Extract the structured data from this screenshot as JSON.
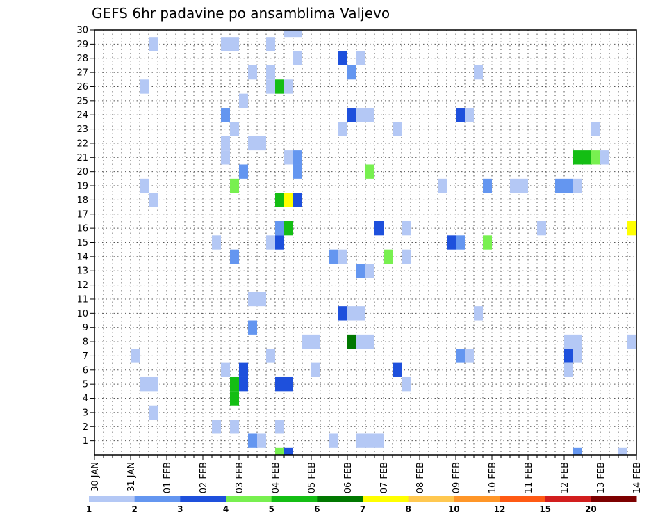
{
  "chart_data": {
    "type": "heatmap",
    "title": "GEFS 6hr padavine po ansamblima Valjevo",
    "x_tick_labels": [
      "30 JAN",
      "31 JAN",
      "01 FEB",
      "02 FEB",
      "03 FEB",
      "04 FEB",
      "05 FEB",
      "06 FEB",
      "07 FEB",
      "08 FEB",
      "09 FEB",
      "10 FEB",
      "11 FEB",
      "12 FEB",
      "13 FEB",
      "14 FEB"
    ],
    "y_tick_labels": [
      "1",
      "2",
      "3",
      "4",
      "5",
      "6",
      "7",
      "8",
      "9",
      "10",
      "11",
      "12",
      "13",
      "14",
      "15",
      "16",
      "17",
      "18",
      "19",
      "20",
      "21",
      "22",
      "23",
      "24",
      "25",
      "26",
      "27",
      "28",
      "29",
      "30"
    ],
    "y_range": [
      0,
      30
    ],
    "x_range_days": [
      0,
      15
    ],
    "steps_per_day": 4,
    "grid": true,
    "colorbar_levels": [
      "1",
      "2",
      "3",
      "4",
      "5",
      "6",
      "7",
      "8",
      "10",
      "12",
      "15",
      "20"
    ],
    "colorbar_colors": [
      "#b4c8f5",
      "#6496f0",
      "#1e50dc",
      "#78f050",
      "#14be14",
      "#007800",
      "#ffff00",
      "#ffc850",
      "#ff9628",
      "#ff5a14",
      "#d21e1e",
      "#7d0000"
    ],
    "cells": [
      {
        "member": 30,
        "step": 21,
        "level": 1
      },
      {
        "member": 30,
        "step": 22,
        "level": 1
      },
      {
        "member": 29,
        "step": 6,
        "level": 1
      },
      {
        "member": 29,
        "step": 14,
        "level": 1
      },
      {
        "member": 29,
        "step": 15,
        "level": 1
      },
      {
        "member": 29,
        "step": 19,
        "level": 1
      },
      {
        "member": 28,
        "step": 22,
        "level": 1
      },
      {
        "member": 28,
        "step": 27,
        "level": 3
      },
      {
        "member": 28,
        "step": 29,
        "level": 1
      },
      {
        "member": 27,
        "step": 17,
        "level": 1
      },
      {
        "member": 27,
        "step": 19,
        "level": 1
      },
      {
        "member": 27,
        "step": 28,
        "level": 2
      },
      {
        "member": 27,
        "step": 42,
        "level": 1
      },
      {
        "member": 26,
        "step": 5,
        "level": 1
      },
      {
        "member": 26,
        "step": 19,
        "level": 1
      },
      {
        "member": 26,
        "step": 20,
        "level": 5
      },
      {
        "member": 26,
        "step": 21,
        "level": 1
      },
      {
        "member": 25,
        "step": 16,
        "level": 1
      },
      {
        "member": 24,
        "step": 14,
        "level": 2
      },
      {
        "member": 24,
        "step": 28,
        "level": 3
      },
      {
        "member": 24,
        "step": 29,
        "level": 1
      },
      {
        "member": 24,
        "step": 30,
        "level": 1
      },
      {
        "member": 24,
        "step": 40,
        "level": 3
      },
      {
        "member": 24,
        "step": 41,
        "level": 1
      },
      {
        "member": 23,
        "step": 15,
        "level": 1
      },
      {
        "member": 23,
        "step": 27,
        "level": 1
      },
      {
        "member": 23,
        "step": 33,
        "level": 1
      },
      {
        "member": 23,
        "step": 55,
        "level": 1
      },
      {
        "member": 22,
        "step": 14,
        "level": 1
      },
      {
        "member": 22,
        "step": 17,
        "level": 1
      },
      {
        "member": 22,
        "step": 18,
        "level": 1
      },
      {
        "member": 21,
        "step": 14,
        "level": 1
      },
      {
        "member": 21,
        "step": 21,
        "level": 1
      },
      {
        "member": 21,
        "step": 22,
        "level": 2
      },
      {
        "member": 21,
        "step": 53,
        "level": 5
      },
      {
        "member": 21,
        "step": 54,
        "level": 5
      },
      {
        "member": 21,
        "step": 55,
        "level": 4
      },
      {
        "member": 21,
        "step": 56,
        "level": 1
      },
      {
        "member": 20,
        "step": 16,
        "level": 2
      },
      {
        "member": 20,
        "step": 22,
        "level": 2
      },
      {
        "member": 20,
        "step": 30,
        "level": 4
      },
      {
        "member": 19,
        "step": 5,
        "level": 1
      },
      {
        "member": 19,
        "step": 15,
        "level": 4
      },
      {
        "member": 19,
        "step": 38,
        "level": 1
      },
      {
        "member": 19,
        "step": 43,
        "level": 2
      },
      {
        "member": 19,
        "step": 46,
        "level": 1
      },
      {
        "member": 19,
        "step": 47,
        "level": 1
      },
      {
        "member": 19,
        "step": 51,
        "level": 2
      },
      {
        "member": 19,
        "step": 52,
        "level": 2
      },
      {
        "member": 19,
        "step": 53,
        "level": 1
      },
      {
        "member": 18,
        "step": 6,
        "level": 1
      },
      {
        "member": 18,
        "step": 20,
        "level": 5
      },
      {
        "member": 18,
        "step": 21,
        "level": 7
      },
      {
        "member": 18,
        "step": 22,
        "level": 3
      },
      {
        "member": 16,
        "step": 20,
        "level": 2
      },
      {
        "member": 16,
        "step": 21,
        "level": 5
      },
      {
        "member": 16,
        "step": 31,
        "level": 3
      },
      {
        "member": 16,
        "step": 34,
        "level": 1
      },
      {
        "member": 16,
        "step": 49,
        "level": 1
      },
      {
        "member": 16,
        "step": 59,
        "level": 7
      },
      {
        "member": 15,
        "step": 13,
        "level": 1
      },
      {
        "member": 15,
        "step": 19,
        "level": 1
      },
      {
        "member": 15,
        "step": 20,
        "level": 3
      },
      {
        "member": 15,
        "step": 39,
        "level": 3
      },
      {
        "member": 15,
        "step": 40,
        "level": 2
      },
      {
        "member": 15,
        "step": 43,
        "level": 4
      },
      {
        "member": 14,
        "step": 15,
        "level": 2
      },
      {
        "member": 14,
        "step": 26,
        "level": 2
      },
      {
        "member": 14,
        "step": 27,
        "level": 1
      },
      {
        "member": 14,
        "step": 32,
        "level": 4
      },
      {
        "member": 14,
        "step": 34,
        "level": 1
      },
      {
        "member": 13,
        "step": 29,
        "level": 2
      },
      {
        "member": 13,
        "step": 30,
        "level": 1
      },
      {
        "member": 11,
        "step": 17,
        "level": 1
      },
      {
        "member": 11,
        "step": 18,
        "level": 1
      },
      {
        "member": 10,
        "step": 27,
        "level": 3
      },
      {
        "member": 10,
        "step": 28,
        "level": 1
      },
      {
        "member": 10,
        "step": 29,
        "level": 1
      },
      {
        "member": 10,
        "step": 42,
        "level": 1
      },
      {
        "member": 9,
        "step": 17,
        "level": 2
      },
      {
        "member": 8,
        "step": 23,
        "level": 1
      },
      {
        "member": 8,
        "step": 24,
        "level": 1
      },
      {
        "member": 8,
        "step": 28,
        "level": 6
      },
      {
        "member": 8,
        "step": 29,
        "level": 1
      },
      {
        "member": 8,
        "step": 30,
        "level": 1
      },
      {
        "member": 8,
        "step": 52,
        "level": 1
      },
      {
        "member": 8,
        "step": 53,
        "level": 1
      },
      {
        "member": 8,
        "step": 59,
        "level": 1
      },
      {
        "member": 7,
        "step": 4,
        "level": 1
      },
      {
        "member": 7,
        "step": 19,
        "level": 1
      },
      {
        "member": 7,
        "step": 40,
        "level": 2
      },
      {
        "member": 7,
        "step": 41,
        "level": 1
      },
      {
        "member": 7,
        "step": 52,
        "level": 3
      },
      {
        "member": 7,
        "step": 53,
        "level": 1
      },
      {
        "member": 6,
        "step": 14,
        "level": 1
      },
      {
        "member": 6,
        "step": 16,
        "level": 3
      },
      {
        "member": 6,
        "step": 24,
        "level": 1
      },
      {
        "member": 6,
        "step": 33,
        "level": 3
      },
      {
        "member": 6,
        "step": 52,
        "level": 1
      },
      {
        "member": 5,
        "step": 5,
        "level": 1
      },
      {
        "member": 5,
        "step": 6,
        "level": 1
      },
      {
        "member": 5,
        "step": 15,
        "level": 5
      },
      {
        "member": 5,
        "step": 16,
        "level": 3
      },
      {
        "member": 5,
        "step": 20,
        "level": 3
      },
      {
        "member": 5,
        "step": 21,
        "level": 3
      },
      {
        "member": 5,
        "step": 34,
        "level": 1
      },
      {
        "member": 4,
        "step": 15,
        "level": 5
      },
      {
        "member": 3,
        "step": 6,
        "level": 1
      },
      {
        "member": 2,
        "step": 13,
        "level": 1
      },
      {
        "member": 2,
        "step": 15,
        "level": 1
      },
      {
        "member": 2,
        "step": 20,
        "level": 1
      },
      {
        "member": 1,
        "step": 17,
        "level": 2
      },
      {
        "member": 1,
        "step": 18,
        "level": 1
      },
      {
        "member": 1,
        "step": 26,
        "level": 1
      },
      {
        "member": 1,
        "step": 29,
        "level": 1
      },
      {
        "member": 1,
        "step": 30,
        "level": 1
      },
      {
        "member": 1,
        "step": 31,
        "level": 1
      },
      {
        "member": 0,
        "step": 20,
        "level": 4
      },
      {
        "member": 0,
        "step": 21,
        "level": 3
      },
      {
        "member": 0,
        "step": 53,
        "level": 2
      },
      {
        "member": 0,
        "step": 58,
        "level": 1
      }
    ]
  }
}
